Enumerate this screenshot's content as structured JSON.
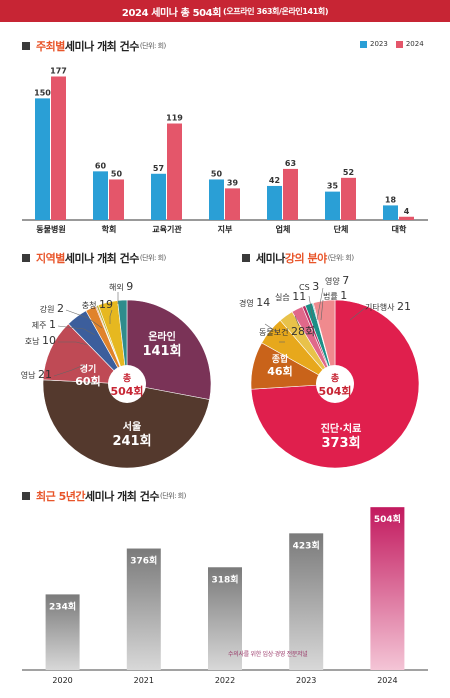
{
  "banner": {
    "main": "2024 세미나 총 504회",
    "sub": "(오프라인 363회/온라인141회)"
  },
  "colors": {
    "y2023": "#2a9fd6",
    "y2024": "#e4566a",
    "accent": "#e8552a",
    "banner": "#c72534"
  },
  "sections": {
    "host": {
      "highlight": "주최별",
      "title": " 세미나 개최 건수",
      "unit": "(단위: 회)"
    },
    "region": {
      "highlight": "지역별",
      "title": " 세미나 개최 건수",
      "unit": "(단위: 회)"
    },
    "field": {
      "pre": "세미나 ",
      "highlight": "강의 분야",
      "unit": "(단위: 회)"
    },
    "trend": {
      "highlight": "최근 5년간",
      "title": " 세미나 개최 건수",
      "unit": "(단위: 회)"
    }
  },
  "legend": {
    "y2023": "2023",
    "y2024": "2024"
  },
  "center_label": {
    "top": "총",
    "value": "504회"
  },
  "watermark": "수의사를 위한 임상·경영 전문저널",
  "chart_data": [
    {
      "type": "bar",
      "categories": [
        "동물병원",
        "학회",
        "교육기관",
        "지부",
        "업체",
        "단체",
        "대학"
      ],
      "series": [
        {
          "name": "2023",
          "values": [
            150,
            60,
            57,
            50,
            42,
            35,
            18
          ]
        },
        {
          "name": "2024",
          "values": [
            177,
            50,
            119,
            39,
            63,
            52,
            4
          ]
        }
      ],
      "ylim": [
        0,
        185
      ]
    },
    {
      "type": "pie",
      "labels": [
        "온라인",
        "서울",
        "경기",
        "영남",
        "호남",
        "제주",
        "강원",
        "충청",
        "해외"
      ],
      "values": [
        141,
        241,
        60,
        21,
        10,
        1,
        2,
        19,
        9
      ],
      "display_values": [
        "141회",
        "241회",
        "60회",
        "21",
        "10",
        "1",
        "2",
        "19",
        "9"
      ],
      "colors": [
        "#7a3357",
        "#54392d",
        "#bf4a55",
        "#3c5e9c",
        "#e0832b",
        "#e07040",
        "#b9b23a",
        "#e6b820",
        "#2f8c8c"
      ]
    },
    {
      "type": "pie",
      "labels": [
        "진단·치료",
        "종합",
        "동물보건",
        "경영",
        "실습",
        "CS",
        "영양",
        "법률",
        "기타행사"
      ],
      "values": [
        373,
        46,
        28,
        14,
        11,
        3,
        7,
        1,
        21
      ],
      "display_values": [
        "373회",
        "46회",
        "28회",
        "14",
        "11",
        "3",
        "7",
        "1",
        "21"
      ],
      "colors": [
        "#e01f4d",
        "#c9631a",
        "#e7a81c",
        "#e8c24a",
        "#e0688a",
        "#b82f63",
        "#1b8f86",
        "#6b8f9e",
        "#f08a8e"
      ]
    },
    {
      "type": "bar",
      "categories": [
        "2020",
        "2021",
        "2022",
        "2023",
        "2024"
      ],
      "values": [
        234,
        376,
        318,
        423,
        504
      ],
      "value_labels": [
        "234회",
        "376회",
        "318회",
        "423회",
        "504회"
      ],
      "ylim": [
        0,
        520
      ]
    }
  ]
}
